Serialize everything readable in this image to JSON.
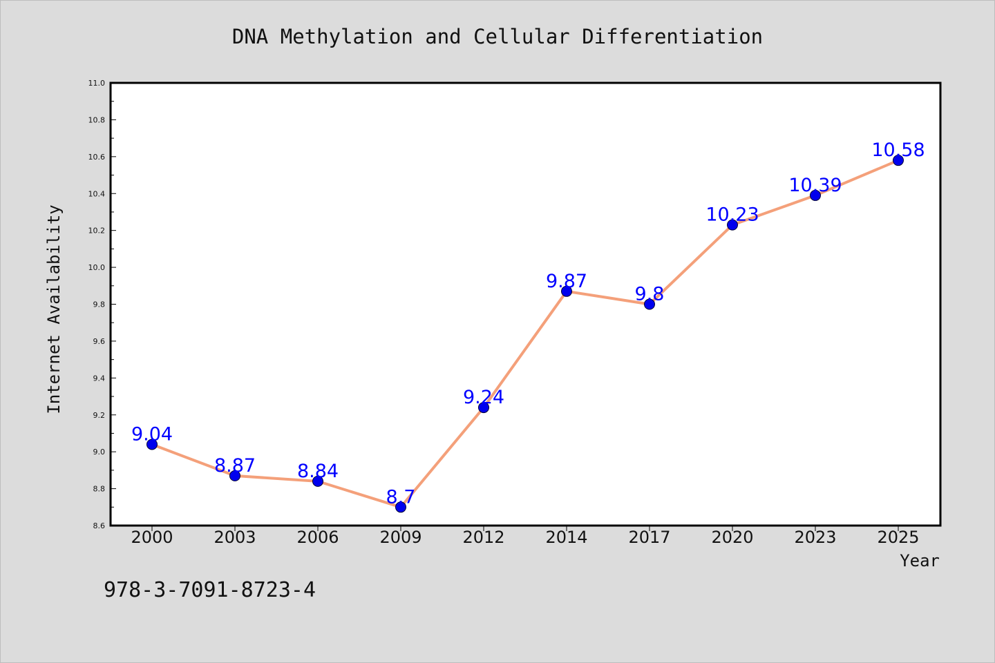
{
  "chart_data": {
    "type": "line",
    "title": "DNA Methylation and Cellular Differentiation",
    "xlabel": "Year",
    "ylabel": "Internet Availability",
    "categories": [
      "2000",
      "2003",
      "2006",
      "2009",
      "2012",
      "2014",
      "2017",
      "2020",
      "2023",
      "2025"
    ],
    "series": [
      {
        "values": [
          9.04,
          8.87,
          8.84,
          8.7,
          9.24,
          9.87,
          9.8,
          10.23,
          10.39,
          10.58
        ],
        "data_labels": [
          "9.04",
          "8.87",
          "8.84",
          "8.7",
          "9.24",
          "9.87",
          "9.8",
          "10.23",
          "10.39",
          "10.58"
        ],
        "line_color": "#f4a07a",
        "marker_color": "#0000ee",
        "label_color": "#0000ff"
      }
    ],
    "ylim": [
      8.6,
      11.0
    ],
    "y_ticks": [
      "8.6",
      "8.8",
      "9.0",
      "9.2",
      "9.4",
      "9.6",
      "9.8",
      "10.0",
      "10.2",
      "10.4",
      "10.6",
      "10.8",
      "11.0"
    ],
    "grid": false,
    "legend": "none"
  },
  "annotation": "978-3-7091-8723-4"
}
